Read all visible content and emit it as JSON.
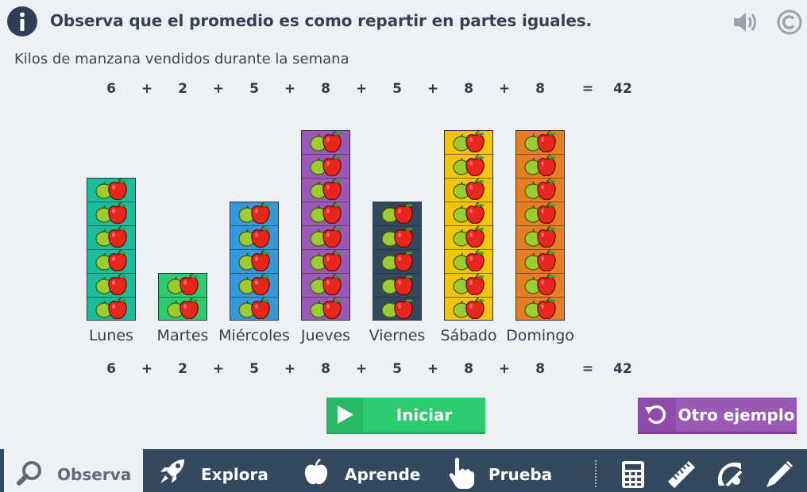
{
  "header": {
    "title": "Observa que el promedio es como repartir en partes iguales."
  },
  "subtitle": "Kilos de manzana vendidos durante la semana",
  "sum_top": {
    "terms": [
      "6",
      "2",
      "5",
      "8",
      "5",
      "8",
      "8"
    ],
    "plus": "+",
    "equals": "=",
    "total": "42"
  },
  "sum_bottom": {
    "terms": [
      "6",
      "2",
      "5",
      "8",
      "5",
      "8",
      "8"
    ],
    "plus": "+",
    "equals": "=",
    "total": "42"
  },
  "days": [
    {
      "label": "Lunes",
      "value": 6,
      "color": "#1abc9c"
    },
    {
      "label": "Martes",
      "value": 2,
      "color": "#2ecc71"
    },
    {
      "label": "Miércoles",
      "value": 5,
      "color": "#3498db"
    },
    {
      "label": "Jueves",
      "value": 8,
      "color": "#9b59b6"
    },
    {
      "label": "Viernes",
      "value": 5,
      "color": "#34495e"
    },
    {
      "label": "Sábado",
      "value": 8,
      "color": "#f1c40f"
    },
    {
      "label": "Domingo",
      "value": 8,
      "color": "#e67e22"
    }
  ],
  "buttons": {
    "start_label": "Iniciar",
    "other_label": "Otro ejemplo",
    "start_color": "#2ecc71",
    "other_color": "#9b59b6"
  },
  "nav": {
    "tabs": [
      {
        "label": "Observa",
        "icon": "magnifier-icon",
        "active": true
      },
      {
        "label": "Explora",
        "icon": "rocket-icon",
        "active": false
      },
      {
        "label": "Aprende",
        "icon": "apple-icon",
        "active": false
      },
      {
        "label": "Prueba",
        "icon": "hand-pointer-icon",
        "active": false
      }
    ],
    "tools": [
      "calculator-icon",
      "ruler-icon",
      "protractor-icon",
      "pencil-icon"
    ],
    "bg_color": "#34495e"
  }
}
